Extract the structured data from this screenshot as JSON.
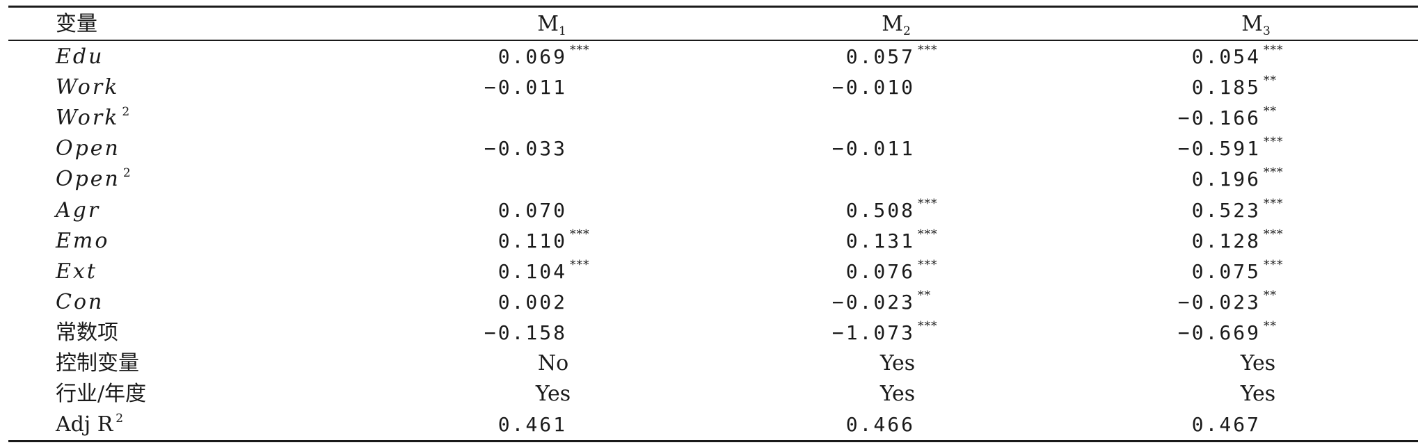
{
  "table": {
    "header": {
      "var": "变量",
      "models": [
        "M",
        "M",
        "M"
      ],
      "model_subs": [
        "1",
        "2",
        "3"
      ]
    },
    "rows": [
      {
        "var": "Edu",
        "italic": true,
        "sup": "",
        "cells": [
          {
            "v": "0.069",
            "s": "***"
          },
          {
            "v": "0.057",
            "s": "***"
          },
          {
            "v": "0.054",
            "s": "***"
          }
        ]
      },
      {
        "var": "Work",
        "italic": true,
        "sup": "",
        "cells": [
          {
            "v": "−0.011",
            "s": ""
          },
          {
            "v": "−0.010",
            "s": ""
          },
          {
            "v": "0.185",
            "s": "**"
          }
        ]
      },
      {
        "var": "Work",
        "italic": true,
        "sup": "2",
        "cells": [
          {
            "v": "",
            "s": ""
          },
          {
            "v": "",
            "s": ""
          },
          {
            "v": "−0.166",
            "s": "**"
          }
        ]
      },
      {
        "var": "Open",
        "italic": true,
        "sup": "",
        "cells": [
          {
            "v": "−0.033",
            "s": ""
          },
          {
            "v": "−0.011",
            "s": ""
          },
          {
            "v": "−0.591",
            "s": "***"
          }
        ]
      },
      {
        "var": "Open",
        "italic": true,
        "sup": "2",
        "cells": [
          {
            "v": "",
            "s": ""
          },
          {
            "v": "",
            "s": ""
          },
          {
            "v": "0.196",
            "s": "***"
          }
        ]
      },
      {
        "var": "Agr",
        "italic": true,
        "sup": "",
        "cells": [
          {
            "v": "0.070",
            "s": ""
          },
          {
            "v": "0.508",
            "s": "***"
          },
          {
            "v": "0.523",
            "s": "***"
          }
        ]
      },
      {
        "var": "Emo",
        "italic": true,
        "sup": "",
        "cells": [
          {
            "v": "0.110",
            "s": "***"
          },
          {
            "v": "0.131",
            "s": "***"
          },
          {
            "v": "0.128",
            "s": "***"
          }
        ]
      },
      {
        "var": "Ext",
        "italic": true,
        "sup": "",
        "cells": [
          {
            "v": "0.104",
            "s": "***"
          },
          {
            "v": "0.076",
            "s": "***"
          },
          {
            "v": "0.075",
            "s": "***"
          }
        ]
      },
      {
        "var": "Con",
        "italic": true,
        "sup": "",
        "cells": [
          {
            "v": "0.002",
            "s": ""
          },
          {
            "v": "−0.023",
            "s": "**"
          },
          {
            "v": "−0.023",
            "s": "**"
          }
        ]
      },
      {
        "var": "常数项",
        "italic": false,
        "sup": "",
        "cells": [
          {
            "v": "−0.158",
            "s": ""
          },
          {
            "v": "−1.073",
            "s": "***"
          },
          {
            "v": "−0.669",
            "s": "**"
          }
        ]
      },
      {
        "var": "控制变量",
        "italic": false,
        "sup": "",
        "text": [
          "No",
          "Yes",
          "Yes"
        ]
      },
      {
        "var": "行业/年度",
        "italic": false,
        "sup": "",
        "text": [
          "Yes",
          "Yes",
          "Yes"
        ]
      },
      {
        "var": "Adj R",
        "italic": false,
        "sup": "2",
        "cells": [
          {
            "v": "0.461",
            "s": ""
          },
          {
            "v": "0.466",
            "s": ""
          },
          {
            "v": "0.467",
            "s": ""
          }
        ]
      }
    ]
  }
}
